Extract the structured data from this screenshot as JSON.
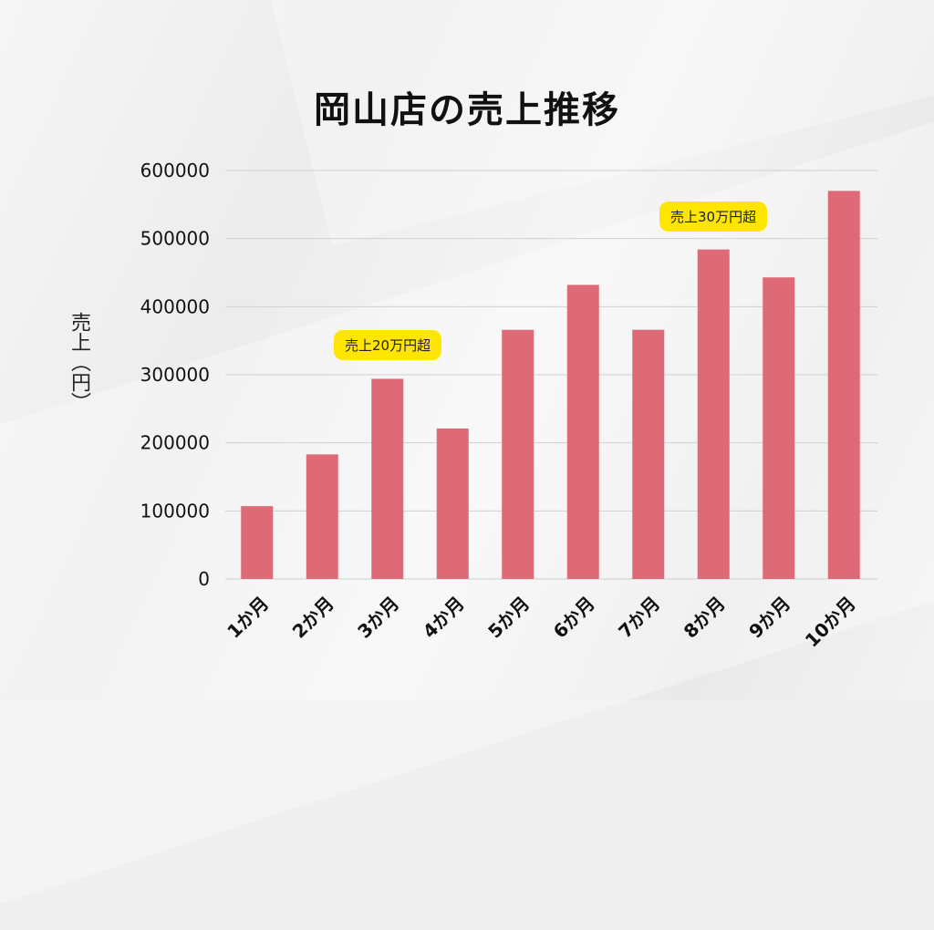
{
  "title": "岡山店の売上推移",
  "chart_data": {
    "type": "bar",
    "title": "岡山店の売上推移",
    "xlabel": "",
    "ylabel": "売上（円）",
    "categories": [
      "1か月",
      "2か月",
      "3か月",
      "4か月",
      "5か月",
      "6か月",
      "7か月",
      "8か月",
      "9か月",
      "10か月"
    ],
    "values": [
      107000,
      183000,
      294000,
      221000,
      366000,
      432000,
      366000,
      484000,
      443000,
      570000
    ],
    "ylim": [
      0,
      600000
    ],
    "yticks": [
      "0",
      "100000",
      "200000",
      "300000",
      "400000",
      "500000",
      "600000"
    ],
    "grid": true,
    "bar_color": "#dd6a76",
    "annotations": [
      {
        "text": "売上20万円超",
        "category_index": 2
      },
      {
        "text": "売上30万円超",
        "category_index": 7
      }
    ]
  },
  "colors": {
    "highlight": "#ffe600",
    "bar": "#dd6a76"
  }
}
